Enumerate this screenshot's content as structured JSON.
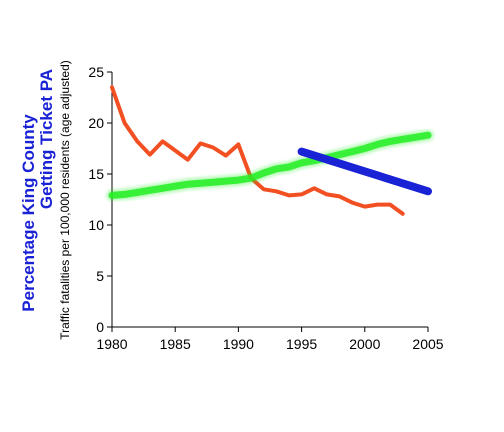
{
  "chart_data": {
    "type": "line",
    "title": "",
    "xlabel": "",
    "ylabels": [
      "Percentage King County",
      "Getting Ticket PA",
      "Traffic fatalities per 100,000 residents (age adjusted)"
    ],
    "xlim": [
      1980,
      2005
    ],
    "ylim": [
      0,
      25
    ],
    "x_ticks": [
      1980,
      1985,
      1990,
      1995,
      2000,
      2005
    ],
    "y_ticks": [
      0,
      5,
      10,
      15,
      20,
      25
    ],
    "grid": false,
    "legend": "none",
    "series": [
      {
        "color": "#f25022",
        "x": [
          1980,
          1981,
          1982,
          1983,
          1984,
          1985,
          1986,
          1987,
          1988,
          1989,
          1990,
          1991,
          1992,
          1993,
          1994,
          1995,
          1996,
          1997,
          1998,
          1999,
          2000,
          2001,
          2002,
          2003
        ],
        "y": [
          23.5,
          20.0,
          18.2,
          16.9,
          18.2,
          17.3,
          16.4,
          18.0,
          17.6,
          16.8,
          17.9,
          14.6,
          13.5,
          13.3,
          12.9,
          13.0,
          13.6,
          13.0,
          12.8,
          12.2,
          11.8,
          12.0,
          12.0,
          11.1
        ]
      },
      {
        "color": "#22ee22",
        "x": [
          1980,
          1981,
          1982,
          1983,
          1984,
          1985,
          1986,
          1987,
          1988,
          1989,
          1990,
          1991,
          1992,
          1993,
          1994,
          1995,
          1996,
          1997,
          1998,
          1999,
          2000,
          2001,
          2002,
          2003,
          2004,
          2005
        ],
        "y": [
          12.9,
          13.0,
          13.2,
          13.4,
          13.6,
          13.8,
          14.0,
          14.1,
          14.2,
          14.3,
          14.4,
          14.6,
          15.1,
          15.5,
          15.7,
          16.1,
          16.3,
          16.6,
          16.9,
          17.2,
          17.5,
          17.9,
          18.2,
          18.4,
          18.6,
          18.8
        ]
      },
      {
        "color": "#1a22d6",
        "x": [
          1995,
          2005
        ],
        "y": [
          17.2,
          13.3
        ]
      }
    ]
  }
}
